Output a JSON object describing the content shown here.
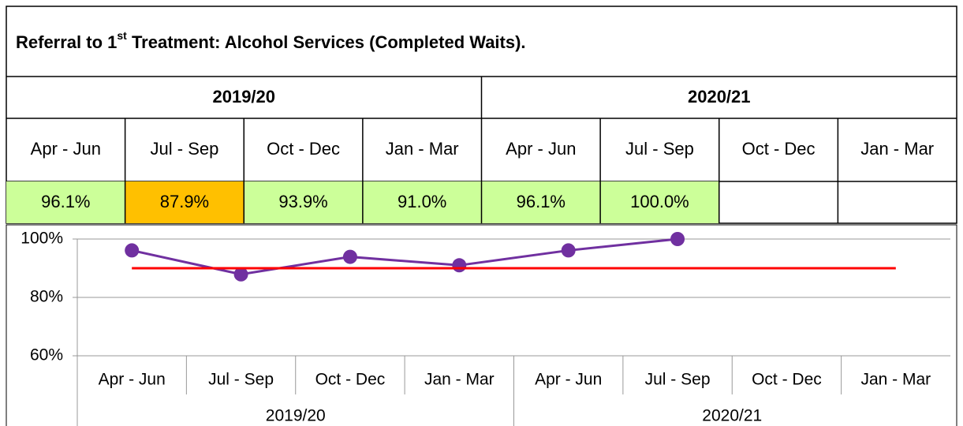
{
  "table": {
    "title": [
      "Referral to 1",
      "st",
      " Treatment: Alcohol Services (Completed Waits)."
    ],
    "years": [
      "2019/20",
      "2020/21"
    ],
    "quarters": [
      "Apr - Jun",
      "Jul - Sep",
      "Oct - Dec",
      "Jan - Mar",
      "Apr - Jun",
      "Jul - Sep",
      "Oct - Dec",
      "Jan - Mar"
    ],
    "values": [
      "96.1%",
      "87.9%",
      "93.9%",
      "91.0%",
      "96.1%",
      "100.0%"
    ],
    "cell_colors": [
      "#ccff99",
      "#ffc000",
      "#ccff99",
      "#ccff99",
      "#ccff99",
      "#ccff99"
    ]
  },
  "chart_data": {
    "type": "line",
    "categories": [
      "Apr - Jun",
      "Jul - Sep",
      "Oct - Dec",
      "Jan - Mar",
      "Apr - Jun",
      "Jul - Sep",
      "Oct - Dec",
      "Jan - Mar"
    ],
    "groups": [
      "2019/20",
      "2020/21"
    ],
    "series": [
      {
        "color": "#7030a0",
        "markers": true,
        "values": [
          96.1,
          87.9,
          93.9,
          91.0,
          96.1,
          100.0,
          null,
          null
        ]
      },
      {
        "color": "#ff0000",
        "markers": false,
        "values": [
          90,
          90,
          90,
          90,
          90,
          90,
          90,
          90
        ]
      }
    ],
    "ylim": [
      60,
      100
    ],
    "yticks": [
      {
        "value": 60,
        "label": "60%"
      },
      {
        "value": 80,
        "label": "80%"
      },
      {
        "value": 100,
        "label": "100%"
      }
    ],
    "grid": true
  }
}
